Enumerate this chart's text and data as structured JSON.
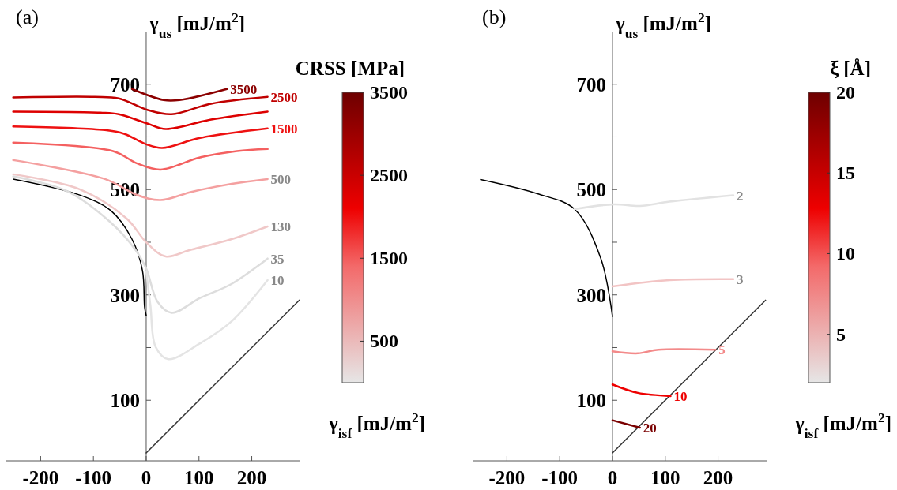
{
  "chart_data": [
    {
      "type": "line",
      "title": "(a)",
      "xlabel": "γ$_{isf}$ [mJ/m$^{2}$]",
      "ylabel": "γ$_{us}$ [mJ/m$^{2}$]",
      "clabel": "CRSS [MPa]",
      "xlim": [
        -265,
        292
      ],
      "ylim": [
        -15,
        800
      ],
      "xticks": [
        -200,
        -100,
        0,
        100,
        200
      ],
      "yticks": [
        100,
        {
          "value": 200,
          "label": null
        },
        300,
        {
          "value": 400,
          "label": null
        },
        500,
        {
          "value": 600,
          "label": null
        },
        700
      ],
      "clim": [
        0,
        3500
      ],
      "cticks": [
        500,
        1500,
        2500,
        3500
      ],
      "series": [
        {
          "color": "#000000",
          "x": [
            -252,
            -127,
            -67,
            -27,
            -7,
            -3,
            0
          ],
          "values": [
            520,
            490,
            460,
            406,
            346,
            276,
            261
          ]
        },
        {
          "color": "#333333",
          "x": [
            0,
            290
          ],
          "values": [
            0,
            290
          ]
        },
        {
          "name": "3500",
          "color": "#8b0000",
          "x": [
            -27,
            33,
            63,
            153
          ],
          "values": [
            691,
            670,
            670,
            691
          ]
        },
        {
          "name": "2500",
          "color": "#c00000",
          "x": [
            -252,
            -97,
            -52,
            3,
            48,
            123,
            230
          ],
          "values": [
            675,
            676,
            673,
            651,
            643,
            663,
            676
          ]
        },
        {
          "color": "#dd0000",
          "x": [
            -252,
            -87,
            -52,
            3,
            37,
            123,
            230
          ],
          "values": [
            648,
            646,
            643,
            625,
            615,
            633,
            648
          ]
        },
        {
          "name": "1500",
          "color": "#ee1111",
          "x": [
            -252,
            -78,
            -42,
            0,
            30,
            102,
            230
          ],
          "values": [
            620,
            613,
            606,
            586,
            579,
            598,
            616
          ]
        },
        {
          "color": "#f46060",
          "x": [
            -252,
            -63,
            -18,
            27,
            102,
            172,
            230
          ],
          "values": [
            589,
            573,
            550,
            538,
            561,
            573,
            577
          ]
        },
        {
          "name": "500",
          "color": "#f4a0a0",
          "x": [
            -252,
            -78,
            -18,
            27,
            87,
            162,
            230
          ],
          "values": [
            556,
            520,
            490,
            480,
            496,
            511,
            520
          ]
        },
        {
          "name": "130",
          "color": "#f0c8c8",
          "x": [
            -252,
            -127,
            -37,
            0,
            37,
            82,
            162,
            230
          ],
          "values": [
            529,
            501,
            445,
            400,
            373,
            385,
            406,
            430
          ]
        },
        {
          "name": "35",
          "color": "#dddddd",
          "x": [
            -252,
            -150,
            -70,
            -20,
            0,
            22,
            48,
            102,
            162,
            230
          ],
          "values": [
            525,
            497,
            440,
            385,
            350,
            286,
            266,
            294,
            321,
            369
          ]
        },
        {
          "name": "10",
          "color": "#e4e4e4",
          "x": [
            0,
            8,
            18,
            42,
            102,
            162,
            230
          ],
          "values": [
            345,
            280,
            201,
            178,
            208,
            250,
            328
          ]
        }
      ]
    },
    {
      "type": "line",
      "title": "(b)",
      "xlabel": "γ$_{isf}$ [mJ/m$^{2}$]",
      "ylabel": "γ$_{us}$ [mJ/m$^{2}$]",
      "clabel": "ξ [Å]",
      "xlim": [
        -265,
        292
      ],
      "ylim": [
        -15,
        800
      ],
      "xticks": [
        -200,
        -100,
        0,
        100,
        200
      ],
      "yticks": [
        100,
        {
          "value": 200,
          "label": null
        },
        300,
        {
          "value": 400,
          "label": null
        },
        500,
        {
          "value": 600,
          "label": null
        },
        700
      ],
      "clim": [
        2,
        20
      ],
      "cticks": [
        5,
        10,
        15,
        20
      ],
      "series": [
        {
          "color": "#000000",
          "x": [
            -250,
            -142,
            -72,
            -22,
            0
          ],
          "values": [
            519,
            492,
            463,
            369,
            259
          ]
        },
        {
          "color": "#333333",
          "x": [
            0,
            290
          ],
          "values": [
            0,
            290
          ]
        },
        {
          "name": "2",
          "color": "#e2e2e2",
          "x": [
            -72,
            3,
            52,
            108,
            229
          ],
          "values": [
            463,
            472,
            469,
            477,
            489
          ]
        },
        {
          "name": "3",
          "color": "#f2c4c4",
          "x": [
            0,
            108,
            229
          ],
          "values": [
            316,
            328,
            330
          ]
        },
        {
          "name": "5",
          "color": "#f38a8a",
          "x": [
            0,
            48,
            87,
            195
          ],
          "values": [
            193,
            189,
            196,
            196
          ]
        },
        {
          "name": "10",
          "color": "#ee0000",
          "x": [
            0,
            48,
            110
          ],
          "values": [
            130,
            114,
            108
          ]
        },
        {
          "name": "20",
          "color": "#7a0000",
          "x": [
            0,
            52
          ],
          "values": [
            62,
            48
          ]
        }
      ]
    }
  ]
}
